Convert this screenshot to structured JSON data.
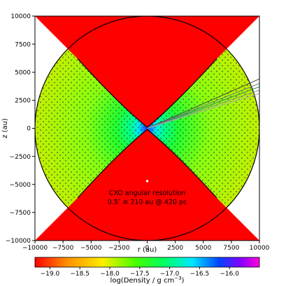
{
  "chart_data": {
    "type": "heatmap",
    "title": "",
    "xlabel": "r (au)",
    "ylabel": "z (au)",
    "xlim": [
      -10000,
      10000
    ],
    "ylim": [
      -10000,
      10000
    ],
    "xticks": [
      -10000,
      -7500,
      -5000,
      -2500,
      0,
      2500,
      5000,
      7500,
      10000
    ],
    "yticks": [
      -10000,
      -7500,
      -5000,
      -2500,
      0,
      2500,
      5000,
      7500,
      10000
    ],
    "xtick_labels": [
      "−10000",
      "−7500",
      "−5000",
      "−2500",
      "0",
      "2500",
      "5000",
      "7500",
      "10000"
    ],
    "ytick_labels": [
      "−10000",
      "−7500",
      "−5000",
      "−2500",
      "0",
      "2500",
      "5000",
      "7500",
      "10000"
    ],
    "grid": false,
    "disk_outer_radius_au": 10000,
    "outflow_cavity": "red bipolar cavity opening toward ±z",
    "colorbar": {
      "label": "log(Density / g cm",
      "label_sup": "−3",
      "label_end": ")",
      "range": [
        -19.25,
        -15.5
      ],
      "ticks": [
        -19.0,
        -18.5,
        -18.0,
        -17.5,
        -17.0,
        -16.5,
        -16.0
      ],
      "tick_labels": [
        "−19.0",
        "−18.5",
        "−18.0",
        "−17.5",
        "−17.0",
        "−16.5",
        "−16.0"
      ],
      "colormap": "gist_rainbow reversed (red → green → cyan → blue → magenta)"
    },
    "annotation": {
      "line1": "CXO angular resolution",
      "line2": "0.5″ ≅  210 au @ 420 pc",
      "marker": [
        0,
        -4700
      ]
    },
    "rays": [
      {
        "slope": 0.44,
        "color": "#444444"
      },
      {
        "slope": 0.4,
        "color": "#777777"
      },
      {
        "slope": 0.37,
        "color": "#2e8b57"
      },
      {
        "slope": 0.34,
        "color": "#888888"
      },
      {
        "slope": 0.31,
        "color": "#aaaaaa"
      }
    ]
  }
}
